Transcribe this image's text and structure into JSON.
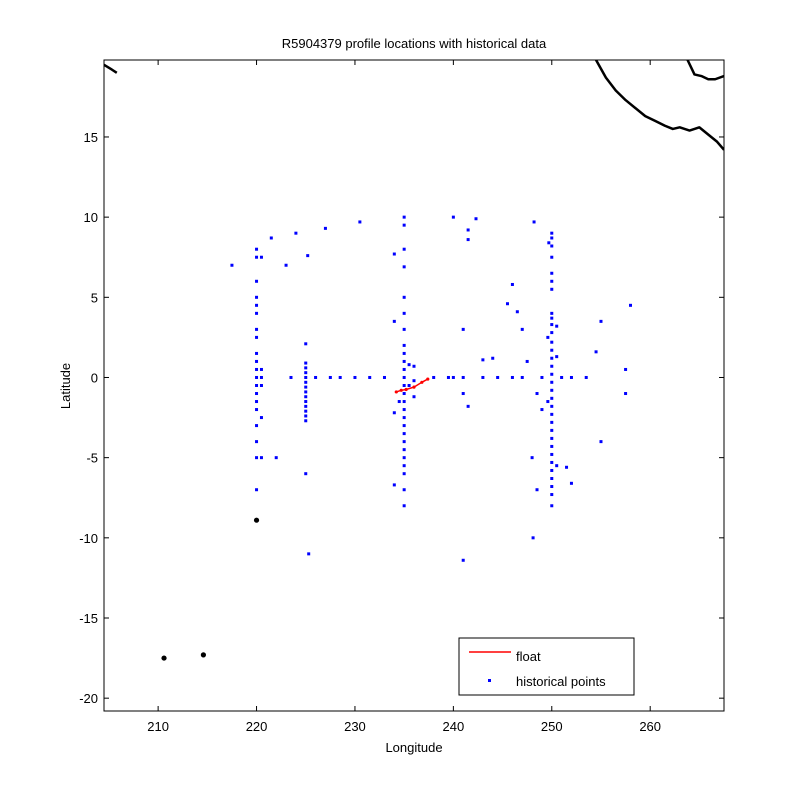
{
  "chart_data": {
    "type": "scatter",
    "title": "R5904379 profile locations with historical data",
    "xlabel": "Longitude",
    "ylabel": "Latitude",
    "xlim": [
      204.5,
      267.5
    ],
    "ylim": [
      -20.8,
      19.8
    ],
    "xticks": [
      210,
      220,
      230,
      240,
      250,
      260
    ],
    "yticks": [
      -20,
      -15,
      -10,
      -5,
      0,
      5,
      10,
      15
    ],
    "legend": {
      "placement": "bottom-right",
      "entries": [
        {
          "label": "float",
          "marker": "line",
          "color": "#ff0000"
        },
        {
          "label": "historical points",
          "marker": "dot",
          "color": "#0000ff"
        }
      ]
    },
    "series": [
      {
        "name": "historical points",
        "color": "#0000ff",
        "points": [
          [
            220,
            8
          ],
          [
            220,
            7.5
          ],
          [
            220,
            6
          ],
          [
            220,
            5
          ],
          [
            220,
            4.5
          ],
          [
            220,
            4
          ],
          [
            220,
            3
          ],
          [
            220,
            2.5
          ],
          [
            220,
            1.5
          ],
          [
            220,
            1
          ],
          [
            220,
            0.5
          ],
          [
            220,
            0
          ],
          [
            220,
            -0.5
          ],
          [
            220,
            -1
          ],
          [
            220,
            -1.5
          ],
          [
            220,
            -2
          ],
          [
            220,
            -3
          ],
          [
            220,
            -4
          ],
          [
            220,
            -5
          ],
          [
            220,
            -7
          ],
          [
            220.5,
            7.5
          ],
          [
            220.5,
            0.5
          ],
          [
            220.5,
            0
          ],
          [
            220.5,
            -0.5
          ],
          [
            220.5,
            -2.5
          ],
          [
            220.5,
            -5
          ],
          [
            225,
            2.1
          ],
          [
            225,
            0.9
          ],
          [
            225,
            0.6
          ],
          [
            225,
            0.3
          ],
          [
            225,
            0
          ],
          [
            225,
            -0.3
          ],
          [
            225,
            -0.6
          ],
          [
            225,
            -0.9
          ],
          [
            225,
            -1.2
          ],
          [
            225,
            -1.5
          ],
          [
            225,
            -1.8
          ],
          [
            225,
            -2.1
          ],
          [
            225,
            -2.4
          ],
          [
            225,
            -2.7
          ],
          [
            225,
            -6
          ],
          [
            225.3,
            -11
          ],
          [
            225.2,
            7.6
          ],
          [
            222,
            -5
          ],
          [
            223,
            7
          ],
          [
            224,
            9
          ],
          [
            217.5,
            7
          ],
          [
            221.5,
            8.7
          ],
          [
            227,
            9.3
          ],
          [
            230.5,
            9.7
          ],
          [
            223.5,
            0
          ],
          [
            226,
            0
          ],
          [
            227.5,
            0
          ],
          [
            228.5,
            0
          ],
          [
            230,
            0
          ],
          [
            231.5,
            0
          ],
          [
            233,
            0
          ],
          [
            238,
            0
          ],
          [
            239.5,
            0
          ],
          [
            240,
            0
          ],
          [
            241,
            0
          ],
          [
            243,
            0
          ],
          [
            244.5,
            0
          ],
          [
            246,
            0
          ],
          [
            247,
            0
          ],
          [
            249,
            0
          ],
          [
            251,
            0
          ],
          [
            252,
            0
          ],
          [
            253.5,
            0
          ],
          [
            234,
            7.7
          ],
          [
            234,
            3.5
          ],
          [
            234,
            -2.2
          ],
          [
            234,
            -6.7
          ],
          [
            235,
            10
          ],
          [
            235,
            9.5
          ],
          [
            235,
            8
          ],
          [
            235,
            6.9
          ],
          [
            235,
            5
          ],
          [
            235,
            4
          ],
          [
            235,
            3
          ],
          [
            235,
            2
          ],
          [
            235,
            1.5
          ],
          [
            235,
            1
          ],
          [
            235,
            0.5
          ],
          [
            235,
            0
          ],
          [
            235,
            -0.5
          ],
          [
            235,
            -1
          ],
          [
            235,
            -1.5
          ],
          [
            235,
            -2
          ],
          [
            235,
            -2.5
          ],
          [
            235,
            -3
          ],
          [
            235,
            -3.5
          ],
          [
            235,
            -4
          ],
          [
            235,
            -4.5
          ],
          [
            235,
            -5
          ],
          [
            235,
            -5.5
          ],
          [
            235,
            -6
          ],
          [
            235,
            -7
          ],
          [
            235,
            -8
          ],
          [
            234.5,
            -1.5
          ],
          [
            235.5,
            0.8
          ],
          [
            235.5,
            -0.5
          ],
          [
            236,
            0.7
          ],
          [
            236,
            -0.2
          ],
          [
            236,
            -1.2
          ],
          [
            240,
            10
          ],
          [
            241,
            3
          ],
          [
            241.5,
            9.2
          ],
          [
            241.5,
            8.6
          ],
          [
            242.3,
            9.9
          ],
          [
            241,
            -1
          ],
          [
            241.5,
            -1.8
          ],
          [
            241,
            -11.4
          ],
          [
            244,
            1.2
          ],
          [
            246,
            5.8
          ],
          [
            245.5,
            4.6
          ],
          [
            246.5,
            4.1
          ],
          [
            247,
            3
          ],
          [
            247.5,
            1
          ],
          [
            248.2,
            9.7
          ],
          [
            248.5,
            -1
          ],
          [
            248,
            -5
          ],
          [
            248.1,
            -10
          ],
          [
            248.5,
            -7
          ],
          [
            252,
            -6.6
          ],
          [
            251.5,
            -5.6
          ],
          [
            255,
            3.5
          ],
          [
            254.5,
            1.6
          ],
          [
            255,
            -4
          ],
          [
            257.5,
            0.5
          ],
          [
            257.5,
            -1
          ],
          [
            258,
            4.5
          ],
          [
            243,
            1.1
          ],
          [
            249,
            -2
          ],
          [
            250.5,
            1.3
          ],
          [
            250,
            9
          ],
          [
            250,
            8.7
          ],
          [
            250,
            8.2
          ],
          [
            250,
            7.5
          ],
          [
            250,
            6.5
          ],
          [
            250,
            6
          ],
          [
            250,
            5.5
          ],
          [
            250,
            4
          ],
          [
            250,
            3.7
          ],
          [
            250,
            3.3
          ],
          [
            250,
            2.8
          ],
          [
            250,
            2.2
          ],
          [
            250,
            1.7
          ],
          [
            250,
            1.2
          ],
          [
            250,
            0.7
          ],
          [
            250,
            0.2
          ],
          [
            250,
            -0.3
          ],
          [
            250,
            -0.8
          ],
          [
            250,
            -1.3
          ],
          [
            250,
            -1.8
          ],
          [
            250,
            -2.3
          ],
          [
            250,
            -2.8
          ],
          [
            250,
            -3.3
          ],
          [
            250,
            -3.8
          ],
          [
            250,
            -4.3
          ],
          [
            250,
            -4.8
          ],
          [
            250,
            -5.3
          ],
          [
            250,
            -5.8
          ],
          [
            250,
            -6.3
          ],
          [
            250,
            -6.8
          ],
          [
            250,
            -7.3
          ],
          [
            250,
            -8
          ],
          [
            249.7,
            8.4
          ],
          [
            249.6,
            2.5
          ],
          [
            249.6,
            -1.5
          ],
          [
            250.5,
            -5.5
          ],
          [
            250.5,
            3.2
          ]
        ]
      },
      {
        "name": "float",
        "color": "#ff0000",
        "points": [
          [
            234.2,
            -0.9
          ],
          [
            234.7,
            -0.8
          ],
          [
            235.2,
            -0.75
          ],
          [
            236,
            -0.6
          ],
          [
            236.8,
            -0.3
          ],
          [
            237.4,
            -0.1
          ]
        ]
      }
    ],
    "coastline": {
      "color": "#000000",
      "segments": [
        [
          [
            204.5,
            19.5
          ],
          [
            205.3,
            19.2
          ],
          [
            205.8,
            19.0
          ]
        ],
        [
          [
            254.5,
            19.8
          ],
          [
            255.5,
            18.7
          ],
          [
            256.5,
            17.9
          ],
          [
            257.5,
            17.3
          ],
          [
            258.5,
            16.8
          ],
          [
            259.5,
            16.3
          ],
          [
            260.5,
            16.0
          ],
          [
            261.5,
            15.7
          ],
          [
            262.3,
            15.5
          ],
          [
            263,
            15.6
          ],
          [
            264,
            15.4
          ],
          [
            265,
            15.6
          ],
          [
            266,
            15.1
          ],
          [
            266.8,
            14.7
          ],
          [
            267.5,
            14.2
          ]
        ],
        [
          [
            263.8,
            19.8
          ],
          [
            264.5,
            18.9
          ],
          [
            265.2,
            18.8
          ],
          [
            265.9,
            18.6
          ],
          [
            266.6,
            18.6
          ],
          [
            267.5,
            18.8
          ]
        ]
      ],
      "islands": [
        [
          220,
          -8.9
        ],
        [
          210.6,
          -17.5
        ],
        [
          214.6,
          -17.3
        ]
      ]
    }
  }
}
